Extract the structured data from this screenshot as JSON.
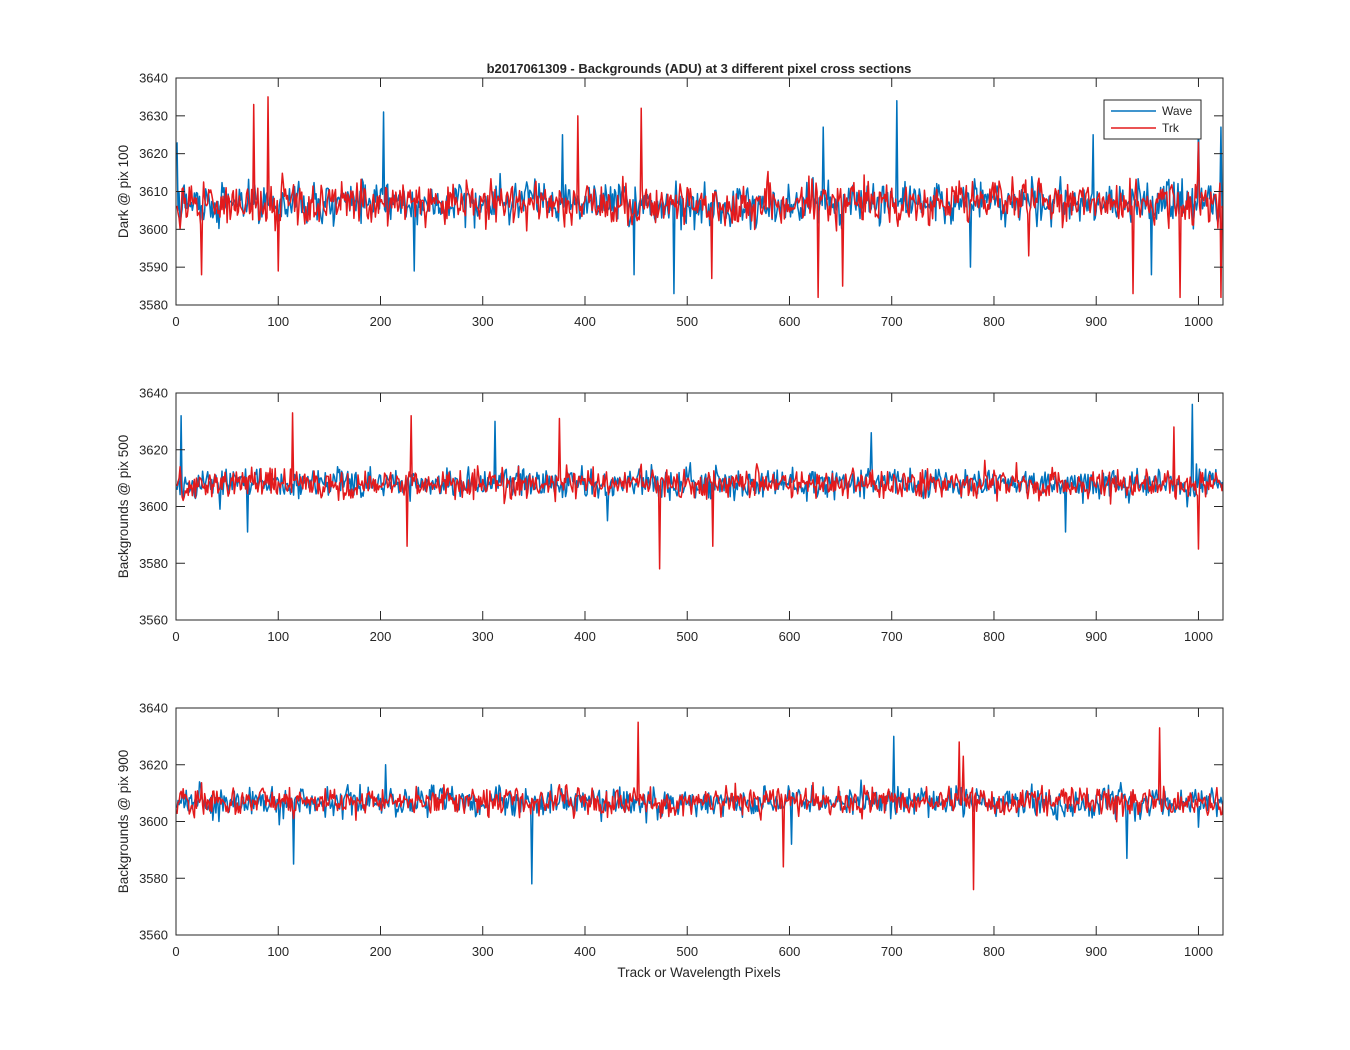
{
  "figure": {
    "title": "b2017061309 - Backgrounds (ADU) at 3 different pixel cross sections",
    "xlabel": "Track or Wavelength Pixels"
  },
  "chart_data": [
    {
      "type": "line",
      "title": "b2017061309 - Backgrounds (ADU) at 3 different pixel cross sections",
      "xlabel": "",
      "ylabel": "Dark @ pix 100",
      "xlim": [
        0,
        1024
      ],
      "ylim": [
        3580,
        3640
      ],
      "xticks": [
        0,
        100,
        200,
        300,
        400,
        500,
        600,
        700,
        800,
        900,
        1000
      ],
      "yticks": [
        3580,
        3590,
        3600,
        3610,
        3620,
        3630,
        3640
      ],
      "grid": false,
      "legend": "top-right",
      "x_description": "pixel index 1..1024 (noisy trace, sampled)",
      "series": [
        {
          "name": "Wave",
          "color": "#0072BD",
          "mean": 3607,
          "amplitude": 7,
          "extremes": [
            [
              1,
              3623
            ],
            [
              203,
              3631
            ],
            [
              233,
              3589
            ],
            [
              378,
              3625
            ],
            [
              448,
              3588
            ],
            [
              487,
              3583
            ],
            [
              633,
              3627
            ],
            [
              705,
              3634
            ],
            [
              777,
              3590
            ],
            [
              897,
              3625
            ],
            [
              954,
              3588
            ],
            [
              1000,
              3628
            ],
            [
              1022,
              3627
            ]
          ]
        },
        {
          "name": "Trk",
          "color": "#E31A1C",
          "mean": 3607,
          "amplitude": 7,
          "extremes": [
            [
              25,
              3588
            ],
            [
              76,
              3633
            ],
            [
              90,
              3635
            ],
            [
              100,
              3589
            ],
            [
              393,
              3630
            ],
            [
              455,
              3632
            ],
            [
              524,
              3587
            ],
            [
              628,
              3582
            ],
            [
              652,
              3585
            ],
            [
              834,
              3593
            ],
            [
              936,
              3583
            ],
            [
              982,
              3582
            ],
            [
              1000,
              3623
            ],
            [
              1022,
              3582
            ]
          ]
        }
      ]
    },
    {
      "type": "line",
      "title": "",
      "xlabel": "",
      "ylabel": "Backgrounds @ pix 500",
      "xlim": [
        0,
        1024
      ],
      "ylim": [
        3560,
        3640
      ],
      "xticks": [
        0,
        100,
        200,
        300,
        400,
        500,
        600,
        700,
        800,
        900,
        1000
      ],
      "yticks": [
        3560,
        3580,
        3600,
        3620,
        3640
      ],
      "grid": false,
      "legend": "none",
      "x_description": "pixel index 1..1024 (noisy trace, sampled)",
      "series": [
        {
          "name": "Wave",
          "color": "#0072BD",
          "mean": 3608,
          "amplitude": 6.5,
          "extremes": [
            [
              5,
              3632
            ],
            [
              70,
              3591
            ],
            [
              312,
              3630
            ],
            [
              422,
              3595
            ],
            [
              680,
              3626
            ],
            [
              870,
              3591
            ],
            [
              994,
              3636
            ],
            [
              998,
              3615
            ]
          ]
        },
        {
          "name": "Trk",
          "color": "#E31A1C",
          "mean": 3608,
          "amplitude": 6.5,
          "extremes": [
            [
              114,
              3633
            ],
            [
              226,
              3586
            ],
            [
              230,
              3632
            ],
            [
              375,
              3631
            ],
            [
              473,
              3578
            ],
            [
              525,
              3586
            ],
            [
              976,
              3628
            ],
            [
              1000,
              3585
            ]
          ]
        }
      ]
    },
    {
      "type": "line",
      "title": "",
      "xlabel": "Track or Wavelength Pixels",
      "ylabel": "Backgrounds @ pix 900",
      "xlim": [
        0,
        1024
      ],
      "ylim": [
        3560,
        3640
      ],
      "xticks": [
        0,
        100,
        200,
        300,
        400,
        500,
        600,
        700,
        800,
        900,
        1000
      ],
      "yticks": [
        3560,
        3580,
        3600,
        3620,
        3640
      ],
      "grid": false,
      "legend": "none",
      "x_description": "pixel index 1..1024 (noisy trace, sampled)",
      "series": [
        {
          "name": "Wave",
          "color": "#0072BD",
          "mean": 3607,
          "amplitude": 6.5,
          "extremes": [
            [
              115,
              3585
            ],
            [
              205,
              3620
            ],
            [
              348,
              3578
            ],
            [
              602,
              3592
            ],
            [
              702,
              3630
            ],
            [
              930,
              3587
            ],
            [
              1000,
              3598
            ]
          ]
        },
        {
          "name": "Trk",
          "color": "#E31A1C",
          "mean": 3607,
          "amplitude": 6.5,
          "extremes": [
            [
              452,
              3635
            ],
            [
              594,
              3584
            ],
            [
              766,
              3628
            ],
            [
              770,
              3623
            ],
            [
              780,
              3576
            ],
            [
              962,
              3633
            ]
          ]
        }
      ]
    }
  ]
}
